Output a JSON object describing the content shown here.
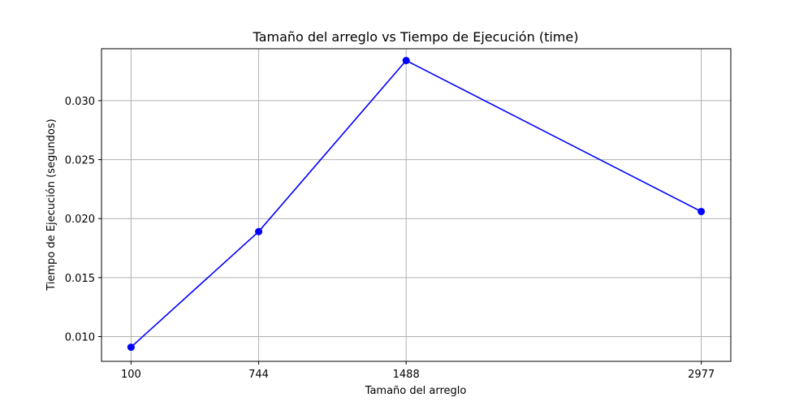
{
  "chart_data": {
    "type": "line",
    "title": "Tamaño del arreglo vs Tiempo de Ejecución (time)",
    "xlabel": "Tamaño del arreglo",
    "ylabel": "Tiempo de Ejecución (segundos)",
    "x": [
      100,
      744,
      1488,
      2977
    ],
    "x_tick_labels": [
      "100",
      "744",
      "1488",
      "2977"
    ],
    "y_ticks": [
      0.01,
      0.015,
      0.02,
      0.025,
      0.03
    ],
    "y_tick_labels": [
      "0.010",
      "0.015",
      "0.020",
      "0.025",
      "0.030"
    ],
    "xlim": [
      -49,
      3126
    ],
    "ylim": [
      0.0079,
      0.0344
    ],
    "grid": true,
    "series": [
      {
        "values": [
          0.0091,
          0.0189,
          0.0334,
          0.0206
        ],
        "color": "#0000ff",
        "marker": "circle"
      }
    ]
  }
}
